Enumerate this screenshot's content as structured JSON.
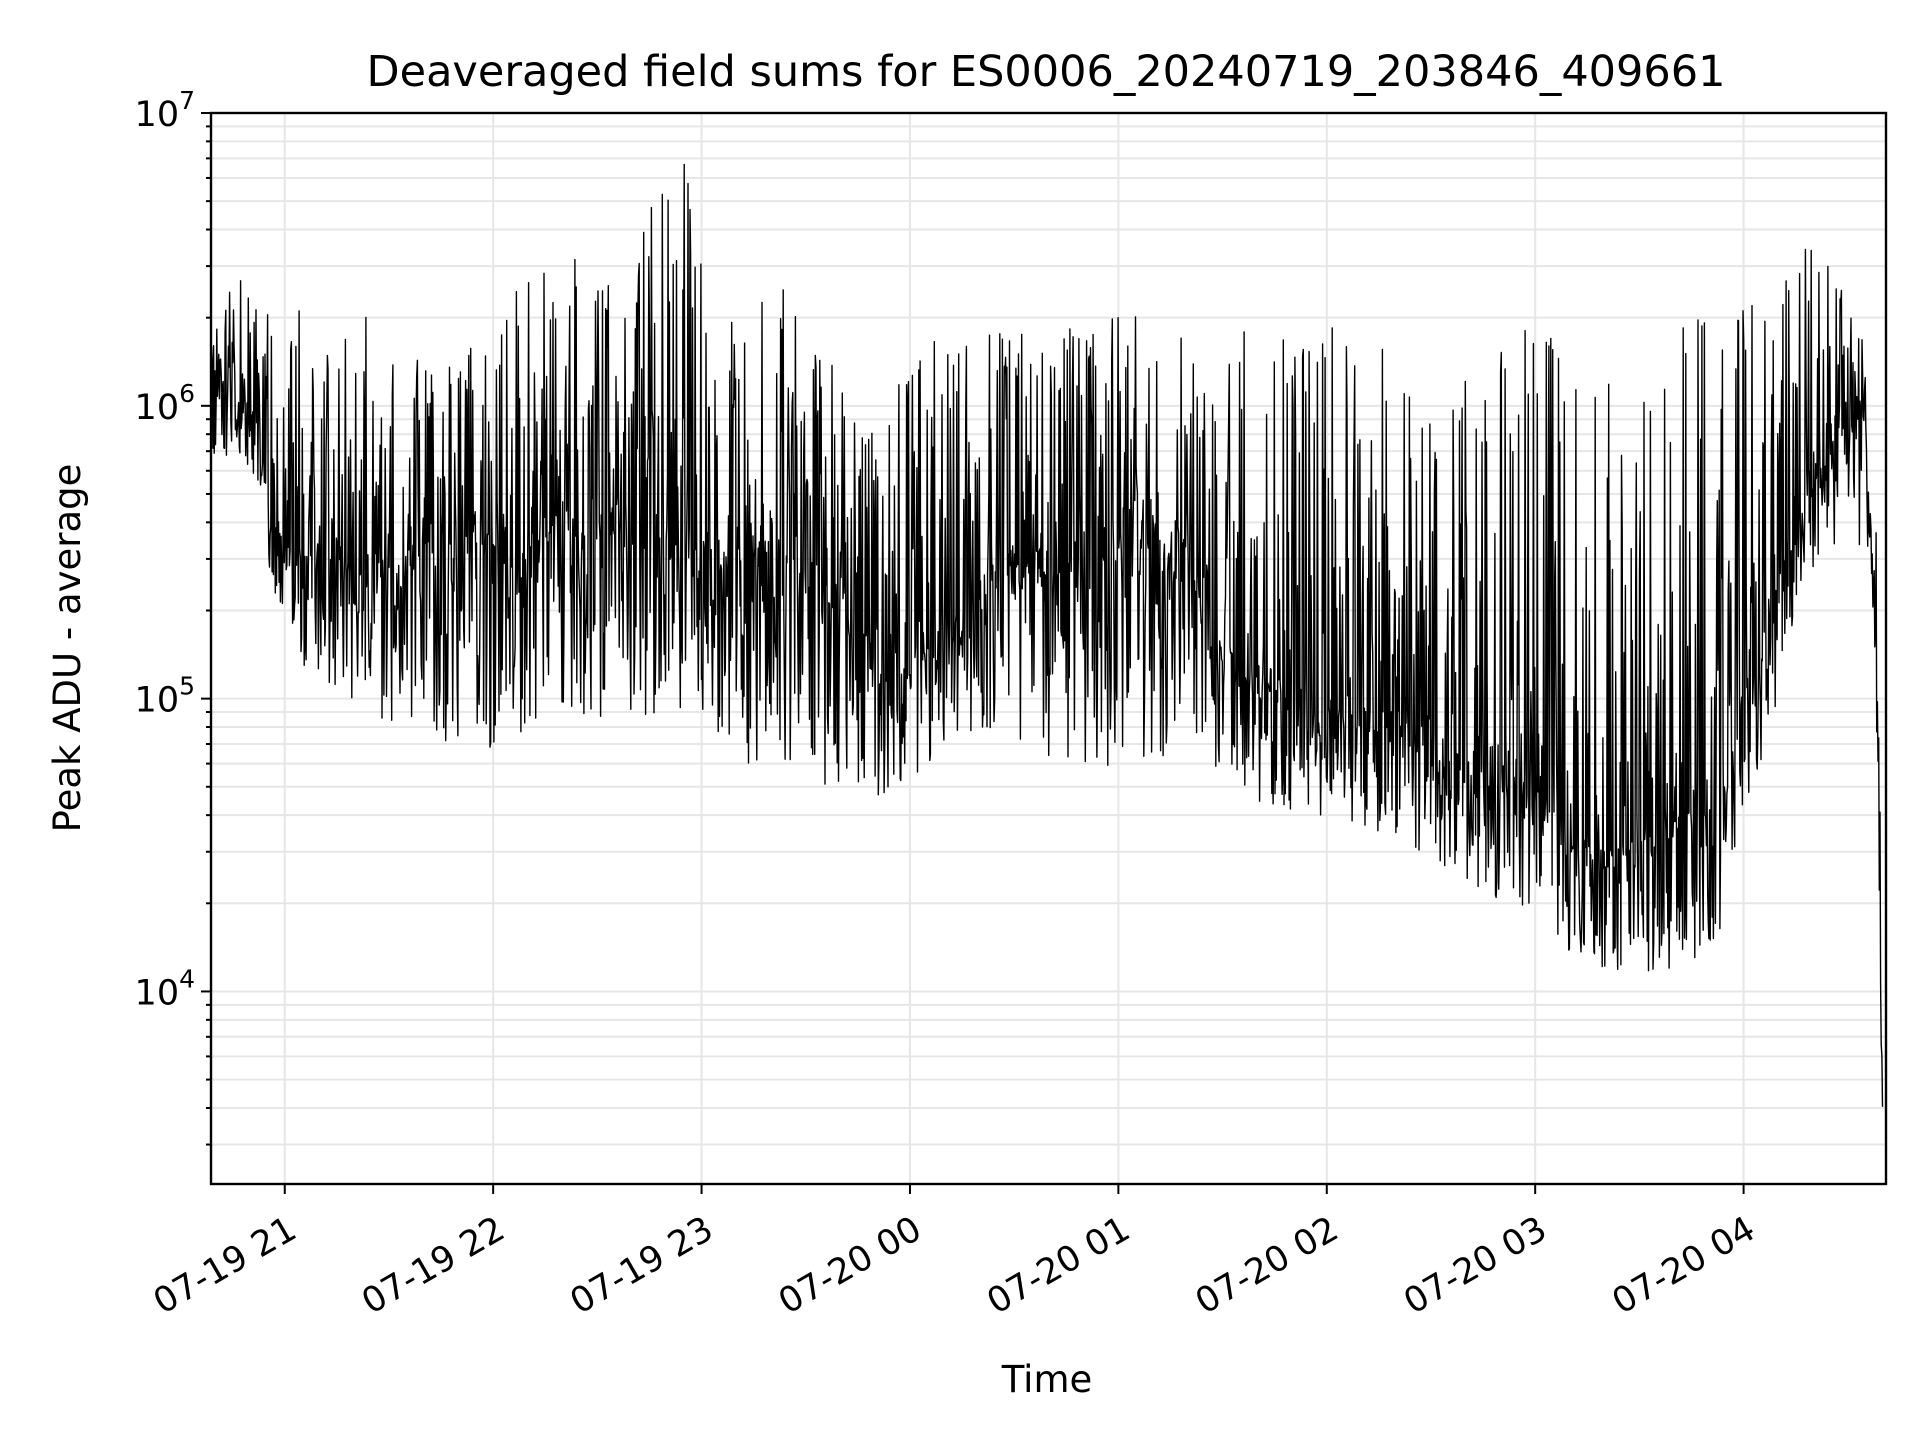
{
  "chart_data": {
    "type": "line",
    "title": "Deaveraged field sums for ES0006_20240719_203846_409661",
    "xlabel": "Time",
    "ylabel": "Peak ADU - average",
    "yscale": "log",
    "ylim": [
      2200,
      10000000
    ],
    "xlim": [
      "2024-07-19T20:38:46",
      "2024-07-20T04:41:00"
    ],
    "grid": true,
    "line_color": "#000000",
    "x_ticks": [
      {
        "label": "07-19 21",
        "value": "2024-07-19T21:00:00"
      },
      {
        "label": "07-19 22",
        "value": "2024-07-19T22:00:00"
      },
      {
        "label": "07-19 23",
        "value": "2024-07-19T23:00:00"
      },
      {
        "label": "07-20 00",
        "value": "2024-07-20T00:00:00"
      },
      {
        "label": "07-20 01",
        "value": "2024-07-20T01:00:00"
      },
      {
        "label": "07-20 02",
        "value": "2024-07-20T02:00:00"
      },
      {
        "label": "07-20 03",
        "value": "2024-07-20T03:00:00"
      },
      {
        "label": "07-20 04",
        "value": "2024-07-20T04:00:00"
      }
    ],
    "y_ticks": [
      {
        "base": "10",
        "exp": "4",
        "value": 10000
      },
      {
        "base": "10",
        "exp": "5",
        "value": 100000
      },
      {
        "base": "10",
        "exp": "6",
        "value": 1000000
      },
      {
        "base": "10",
        "exp": "7",
        "value": 10000000
      }
    ],
    "series": [
      {
        "x": [
          "2024-07-19T20:38:46",
          "2024-07-19T20:45:00",
          "2024-07-19T20:52:00",
          "2024-07-19T20:56:00",
          "2024-07-19T21:05:00",
          "2024-07-19T21:14:00",
          "2024-07-19T21:25:00",
          "2024-07-19T21:40:00",
          "2024-07-19T21:55:00",
          "2024-07-19T22:15:00",
          "2024-07-19T22:30:00",
          "2024-07-19T22:40:00",
          "2024-07-19T22:47:00",
          "2024-07-19T22:55:00",
          "2024-07-19T23:10:00",
          "2024-07-19T23:20:00",
          "2024-07-19T23:35:00",
          "2024-07-19T23:50:00",
          "2024-07-19T23:55:00",
          "2024-07-20T00:05:00",
          "2024-07-20T00:20:00",
          "2024-07-20T00:35:00",
          "2024-07-20T00:50:00",
          "2024-07-20T01:05:00",
          "2024-07-20T01:20:00",
          "2024-07-20T01:30:00",
          "2024-07-20T01:45:00",
          "2024-07-20T02:00:00",
          "2024-07-20T02:15:00",
          "2024-07-20T02:30:00",
          "2024-07-20T02:45:00",
          "2024-07-20T03:00:00",
          "2024-07-20T03:10:00",
          "2024-07-20T03:20:00",
          "2024-07-20T03:35:00",
          "2024-07-20T03:50:00",
          "2024-07-20T04:05:00",
          "2024-07-20T04:20:00",
          "2024-07-20T04:30:00",
          "2024-07-20T04:35:00",
          "2024-07-20T04:38:00",
          "2024-07-20T04:40:00"
        ],
        "y": [
          1300000,
          1200000,
          900000,
          400000,
          300000,
          350000,
          250000,
          350000,
          350000,
          400000,
          350000,
          400000,
          350000,
          350000,
          300000,
          350000,
          250000,
          150000,
          100000,
          150000,
          250000,
          300000,
          300000,
          350000,
          300000,
          150000,
          120000,
          100000,
          90000,
          70000,
          60000,
          50000,
          35000,
          30000,
          35000,
          45000,
          150000,
          700000,
          800000,
          900000,
          200000,
          3500
        ],
        "y_low": [
          700000,
          600000,
          500000,
          250000,
          130000,
          110000,
          80000,
          75000,
          60000,
          80000,
          80000,
          80000,
          80000,
          80000,
          60000,
          60000,
          50000,
          45000,
          50000,
          55000,
          70000,
          65000,
          60000,
          55000,
          60000,
          55000,
          40000,
          40000,
          35000,
          28000,
          22000,
          18000,
          13000,
          12000,
          11500,
          11000,
          60000,
          280000,
          300000,
          350000,
          100000,
          3300
        ],
        "y_high": [
          1600000,
          2900000,
          2400000,
          2000000,
          2200000,
          1800000,
          2200000,
          1400000,
          1600000,
          4000000,
          2700000,
          2800000,
          6800000,
          7200000,
          1700000,
          2800000,
          1700000,
          800000,
          1200000,
          1700000,
          1800000,
          1800000,
          2000000,
          2100000,
          1800000,
          2000000,
          1900000,
          1900000,
          1700000,
          1400000,
          1300000,
          2300000,
          1300000,
          1300000,
          1300000,
          2800000,
          2600000,
          3600000,
          2400000,
          1700000,
          600000,
          25000
        ]
      }
    ]
  }
}
